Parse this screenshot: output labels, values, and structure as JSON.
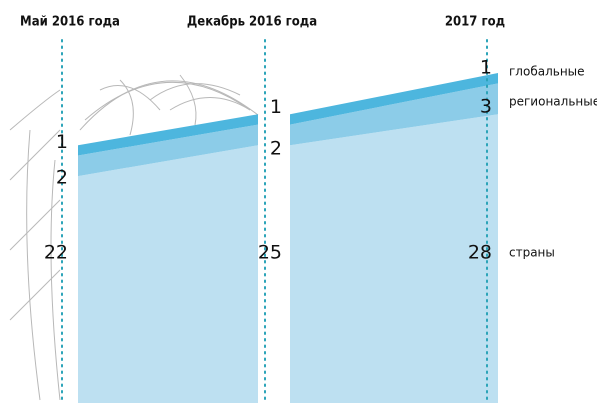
{
  "chart_data": {
    "type": "stacked-area",
    "categories": [
      "Май 2016 года",
      "Декабрь 2016 года",
      "2017 год"
    ],
    "series": [
      {
        "name": "страны",
        "color": "#bde0f1",
        "values": [
          22,
          25,
          28
        ]
      },
      {
        "name": "региональные",
        "color": "#8ccce8",
        "values": [
          2,
          2,
          3
        ]
      },
      {
        "name": "глобальные",
        "color": "#4db6de",
        "values": [
          1,
          1,
          1
        ]
      }
    ]
  }
}
